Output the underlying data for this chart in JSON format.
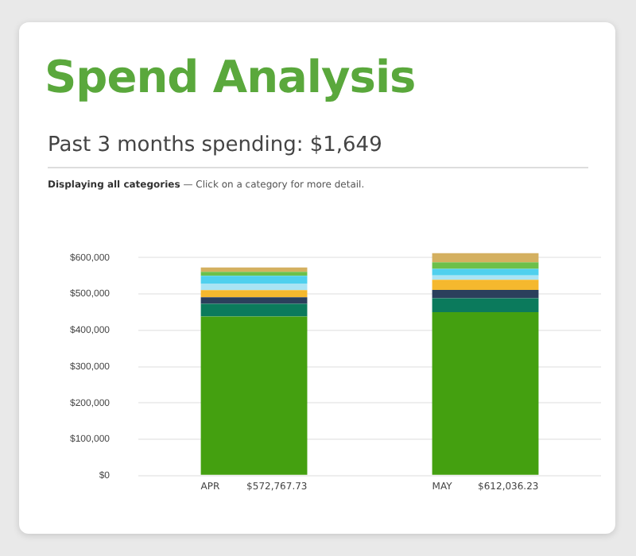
{
  "chart_data": {
    "type": "bar",
    "title": "Spend Analysis",
    "subtitle": "Past 3 months spending: $1,649",
    "annotations": [
      "Displaying all categories",
      "— Click on a category for more detail."
    ],
    "categories": [
      "APR",
      "MAY"
    ],
    "stacked": true,
    "series": [
      {
        "color": "#44a010",
        "values": [
          437767.73,
          450036.23
        ]
      },
      {
        "color": "#0b7a5c",
        "values": [
          35000,
          38000
        ]
      },
      {
        "color": "#2b3f5c",
        "values": [
          18000,
          23000
        ]
      },
      {
        "color": "#f5b82e",
        "values": [
          20000,
          28000
        ]
      },
      {
        "color": "#a9e4f4",
        "values": [
          18000,
          12000
        ]
      },
      {
        "color": "#4fd0ee",
        "values": [
          21000,
          18000
        ]
      },
      {
        "color": "#6cc04a",
        "values": [
          11000,
          18000
        ]
      },
      {
        "color": "#d4b060",
        "values": [
          12000,
          25000
        ]
      }
    ],
    "totals": [
      "$572,767.73",
      "$612,036.23"
    ],
    "ylim": [
      0,
      620000
    ],
    "yticks": [
      {
        "value": 0,
        "label": "$0"
      },
      {
        "value": 100000,
        "label": "$100,000"
      },
      {
        "value": 200000,
        "label": "$200,000"
      },
      {
        "value": 300000,
        "label": "$300,000"
      },
      {
        "value": 400000,
        "label": "$400,000"
      },
      {
        "value": 500000,
        "label": "$500,000"
      },
      {
        "value": 600000,
        "label": "$600,000"
      }
    ],
    "grid": "y",
    "legend": false
  }
}
